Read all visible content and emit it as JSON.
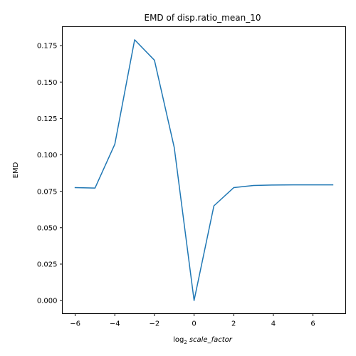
{
  "chart_data": {
    "type": "line",
    "title": "EMD of disp.ratio_mean_10",
    "xlabel_base": "log",
    "xlabel_sub": "2",
    "xlabel_var": "scale_factor",
    "ylabel": "EMD",
    "xlim": [
      -6.65,
      7.65
    ],
    "ylim": [
      -0.009,
      0.188
    ],
    "x": [
      -6,
      -5,
      -4,
      -3,
      -2,
      -1,
      0,
      1,
      2,
      3,
      4,
      5,
      6,
      7
    ],
    "series": [
      {
        "values": [
          0.0775,
          0.0772,
          0.1073,
          0.179,
          0.165,
          0.105,
          0.0,
          0.065,
          0.0775,
          0.079,
          0.0793,
          0.0794,
          0.0794,
          0.0794
        ],
        "color": "#1f77b4"
      }
    ],
    "xticks": [
      -6,
      -4,
      -2,
      0,
      2,
      4,
      6
    ],
    "xtick_labels": [
      "−6",
      "−4",
      "−2",
      "0",
      "2",
      "4",
      "6"
    ],
    "yticks": [
      0.0,
      0.025,
      0.05,
      0.075,
      0.1,
      0.125,
      0.15,
      0.175
    ],
    "ytick_labels": [
      "0.000",
      "0.025",
      "0.050",
      "0.075",
      "0.100",
      "0.125",
      "0.150",
      "0.175"
    ],
    "grid": false,
    "legend": "none"
  }
}
